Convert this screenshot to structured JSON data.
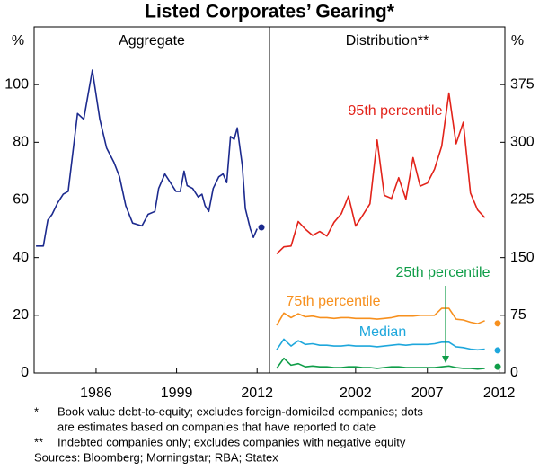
{
  "title": "Listed Corporates’ Gearing*",
  "chart_data": [
    {
      "type": "line",
      "subtitle": "Aggregate",
      "y_unit": "%",
      "yaxis_side": "left",
      "xlim": [
        1976,
        2014
      ],
      "ylim": [
        0,
        120
      ],
      "xticks": [
        1986,
        1999,
        2012
      ],
      "yticks": [
        0,
        20,
        40,
        60,
        80,
        100
      ],
      "x": [
        1976.3,
        1977.5,
        1978.2,
        1978.9,
        1979.8,
        1980.7,
        1981.5,
        1983.0,
        1984.0,
        1985.4,
        1986.6,
        1987.7,
        1988.9,
        1989.8,
        1990.8,
        1991.9,
        1993.4,
        1994.4,
        1995.5,
        1996.1,
        1997.1,
        1998.0,
        1998.9,
        1999.6,
        2000.2,
        2000.7,
        2001.6,
        2002.5,
        2003.1,
        2003.6,
        2004.2,
        2004.9,
        2005.8,
        2006.5,
        2007.1,
        2007.7,
        2008.3,
        2008.8,
        2009.6,
        2010.1,
        2010.9,
        2011.4,
        2012.0
      ],
      "series": [
        {
          "color": "#1c2a8e",
          "values": [
            44,
            44,
            53,
            55,
            59,
            62,
            63,
            90,
            88,
            105,
            88,
            78,
            73,
            68,
            58,
            52,
            51,
            55,
            56,
            64,
            69,
            66,
            63,
            63,
            70,
            65,
            64,
            61,
            62,
            58,
            56,
            64,
            68,
            69,
            66,
            82,
            81,
            85,
            72,
            57,
            50,
            47,
            50
          ],
          "estimate": {
            "x": 2012.7,
            "value": 50.5
          }
        }
      ]
    },
    {
      "type": "line",
      "subtitle": "Distribution**",
      "y_unit": "%",
      "yaxis_side": "right",
      "xlim": [
        1996,
        2012.4
      ],
      "ylim": [
        0,
        450
      ],
      "xticks": [
        2002,
        2007,
        2012
      ],
      "yticks": [
        0,
        75,
        150,
        225,
        300,
        375
      ],
      "x": [
        1996.5,
        1997,
        1997.5,
        1998,
        1998.5,
        1999,
        1999.5,
        2000,
        2000.5,
        2001,
        2001.5,
        2002,
        2002.5,
        2003,
        2003.5,
        2004,
        2004.5,
        2005,
        2005.5,
        2006,
        2006.5,
        2007,
        2007.5,
        2008,
        2008.5,
        2009,
        2009.5,
        2010,
        2010.5,
        2011
      ],
      "series": [
        {
          "name": "95th percentile",
          "color": "#e2231a",
          "values": [
            155,
            164,
            165,
            197,
            187,
            179,
            184,
            178,
            196,
            207,
            230,
            191,
            205,
            220,
            303,
            231,
            227,
            254,
            226,
            280,
            243,
            247,
            265,
            295,
            364,
            298,
            326,
            234,
            212,
            202
          ]
        },
        {
          "name": "75th percentile",
          "color": "#f7901e",
          "values": [
            62,
            78,
            72,
            77,
            73,
            74,
            72,
            72,
            71,
            72,
            72,
            71,
            71,
            71,
            70,
            71,
            72,
            74,
            74,
            74,
            75,
            75,
            75,
            84,
            84,
            70,
            69,
            66,
            64,
            68
          ],
          "estimate": {
            "x": 2011.9,
            "value": 64.5
          }
        },
        {
          "name": "Median",
          "color": "#1ea7dc",
          "values": [
            30,
            44,
            35,
            42,
            37,
            38,
            36,
            36,
            35,
            35,
            36,
            35,
            35,
            35,
            34,
            35,
            36,
            37,
            36,
            37,
            37,
            37,
            38,
            40,
            40,
            34,
            33,
            31,
            30,
            31
          ],
          "estimate": {
            "x": 2011.9,
            "value": 29.3
          }
        },
        {
          "name": "25th percentile",
          "color": "#0f9d48",
          "values": [
            6,
            19,
            10,
            12,
            8,
            9,
            8,
            8,
            7,
            7,
            8,
            8,
            7,
            7,
            6,
            7,
            8,
            8,
            7,
            7,
            7,
            7,
            7,
            8,
            9,
            7,
            6,
            6,
            5,
            6
          ],
          "estimate": {
            "x": 2011.9,
            "value": 8
          }
        }
      ]
    }
  ],
  "notes": [
    {
      "mark": "*",
      "lines": [
        "Book value debt-to-equity; excludes foreign-domiciled companies; dots",
        "are estimates based on companies that have reported to date"
      ]
    },
    {
      "mark": "**",
      "lines": [
        "Indebted companies only; excludes companies with negative equity"
      ]
    }
  ],
  "sources": "Sources: Bloomberg; Morningstar; RBA; Statex"
}
